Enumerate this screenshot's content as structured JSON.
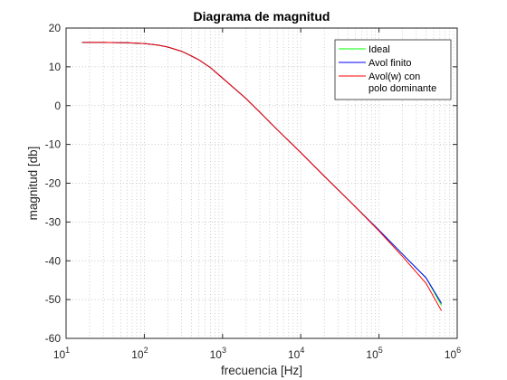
{
  "chart_data": {
    "type": "line",
    "title": "Diagrama de magnitud",
    "xlabel": "frecuencia [Hz]",
    "ylabel": "magnitud [db]",
    "x_scale": "log",
    "xlim": [
      10,
      1000000
    ],
    "ylim": [
      -60,
      20
    ],
    "x_ticks": [
      10,
      100,
      1000,
      10000,
      100000,
      1000000
    ],
    "x_tick_labels": [
      {
        "base": "10",
        "exp": "1"
      },
      {
        "base": "10",
        "exp": "2"
      },
      {
        "base": "10",
        "exp": "3"
      },
      {
        "base": "10",
        "exp": "4"
      },
      {
        "base": "10",
        "exp": "5"
      },
      {
        "base": "10",
        "exp": "6"
      }
    ],
    "y_ticks": [
      20,
      10,
      0,
      -10,
      -20,
      -30,
      -40,
      -50,
      -60
    ],
    "y_tick_labels": [
      "20",
      "10",
      "0",
      "-10",
      "-20",
      "-30",
      "-40",
      "-50",
      "-60"
    ],
    "grid": {
      "major": true,
      "minor": true,
      "style": "dotted"
    },
    "legend": {
      "position": "top-right",
      "entries": [
        {
          "label_lines": [
            "Ideal"
          ],
          "color": "#00ff00"
        },
        {
          "label_lines": [
            "Avol finito"
          ],
          "color": "#0000ff"
        },
        {
          "label_lines": [
            "Avol(w) con",
            "polo dominante"
          ],
          "color": "#ff0000"
        }
      ]
    },
    "series": [
      {
        "name": "Ideal",
        "color": "#00ff00",
        "x": [
          16,
          30,
          60,
          100,
          150,
          200,
          300,
          400,
          500,
          700,
          1000,
          2000,
          3000,
          5000,
          10000,
          20000,
          50000,
          100000,
          200000,
          400000,
          630000
        ],
        "y": [
          16.3,
          16.3,
          16.2,
          16.0,
          15.6,
          15.1,
          14.0,
          12.8,
          11.8,
          9.8,
          7.1,
          1.8,
          -1.7,
          -6.2,
          -12.1,
          -18.2,
          -26.1,
          -32.1,
          -38.3,
          -44.4,
          -51.5
        ]
      },
      {
        "name": "Avol finito",
        "color": "#0000ff",
        "x": [
          16,
          30,
          60,
          100,
          150,
          200,
          300,
          400,
          500,
          700,
          1000,
          2000,
          3000,
          5000,
          10000,
          20000,
          50000,
          100000,
          200000,
          400000,
          630000
        ],
        "y": [
          16.3,
          16.3,
          16.2,
          16.0,
          15.6,
          15.1,
          14.0,
          12.8,
          11.8,
          9.8,
          7.1,
          1.8,
          -1.7,
          -6.2,
          -12.1,
          -18.2,
          -26.1,
          -32.1,
          -38.3,
          -44.4,
          -51.0
        ]
      },
      {
        "name": "Avol(w) con polo dominante",
        "color": "#ff0000",
        "x": [
          16,
          30,
          60,
          100,
          150,
          200,
          300,
          400,
          500,
          700,
          1000,
          2000,
          3000,
          5000,
          10000,
          20000,
          50000,
          100000,
          200000,
          400000,
          630000
        ],
        "y": [
          16.3,
          16.3,
          16.2,
          16.0,
          15.6,
          15.1,
          14.0,
          12.8,
          11.8,
          9.8,
          7.1,
          1.8,
          -1.7,
          -6.2,
          -12.1,
          -18.2,
          -26.1,
          -32.3,
          -38.9,
          -45.8,
          -52.9
        ]
      }
    ]
  }
}
